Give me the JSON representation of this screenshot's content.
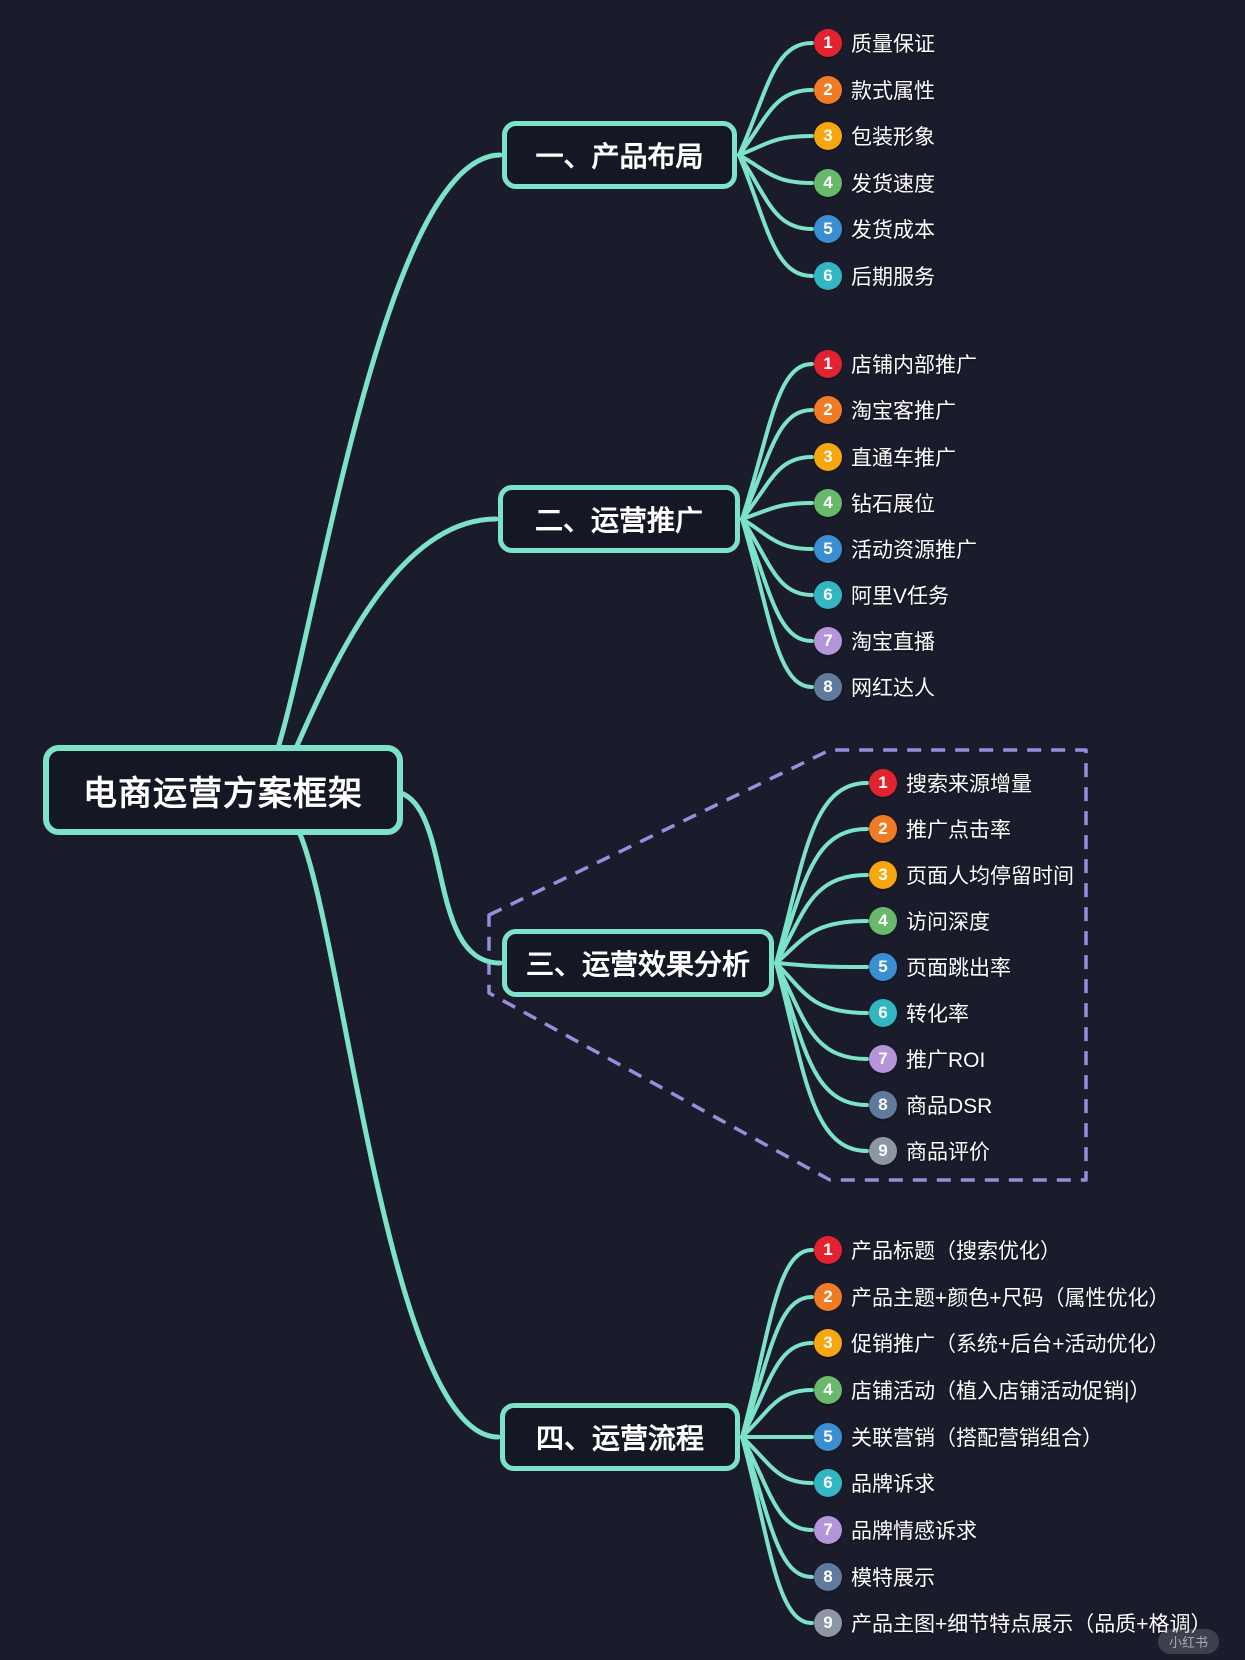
{
  "title": "电商运营方案框架",
  "watermark": "小红书",
  "colors": {
    "background": "#1a1c2b",
    "accent": "#7de3c8",
    "dashed_outline": "#958fdf",
    "text": "#ffffff",
    "badge_colors": [
      "#e2232f",
      "#ef7c25",
      "#f7a60e",
      "#68b96b",
      "#3a8ed2",
      "#31b6c2",
      "#b595d9",
      "#5f7a9d",
      "#8f96a3"
    ]
  },
  "branches": [
    {
      "label": "一、产品布局",
      "children": [
        {
          "num": "1",
          "label": "质量保证"
        },
        {
          "num": "2",
          "label": "款式属性"
        },
        {
          "num": "3",
          "label": "包装形象"
        },
        {
          "num": "4",
          "label": "发货速度"
        },
        {
          "num": "5",
          "label": "发货成本"
        },
        {
          "num": "6",
          "label": "后期服务"
        }
      ]
    },
    {
      "label": "二、运营推广",
      "children": [
        {
          "num": "1",
          "label": "店铺内部推广"
        },
        {
          "num": "2",
          "label": "淘宝客推广"
        },
        {
          "num": "3",
          "label": "直通车推广"
        },
        {
          "num": "4",
          "label": "钻石展位"
        },
        {
          "num": "5",
          "label": "活动资源推广"
        },
        {
          "num": "6",
          "label": "阿里V任务"
        },
        {
          "num": "7",
          "label": "淘宝直播"
        },
        {
          "num": "8",
          "label": "网红达人"
        }
      ]
    },
    {
      "label": "三、运营效果分析",
      "children": [
        {
          "num": "1",
          "label": "搜索来源增量"
        },
        {
          "num": "2",
          "label": "推广点击率"
        },
        {
          "num": "3",
          "label": "页面人均停留时间"
        },
        {
          "num": "4",
          "label": "访问深度"
        },
        {
          "num": "5",
          "label": "页面跳出率"
        },
        {
          "num": "6",
          "label": "转化率"
        },
        {
          "num": "7",
          "label": "推广ROI"
        },
        {
          "num": "8",
          "label": "商品DSR"
        },
        {
          "num": "9",
          "label": "商品评价"
        }
      ]
    },
    {
      "label": "四、运营流程",
      "children": [
        {
          "num": "1",
          "label": "产品标题（搜索优化）"
        },
        {
          "num": "2",
          "label": "产品主题+颜色+尺码（属性优化）"
        },
        {
          "num": "3",
          "label": "促销推广（系统+后台+活动优化）"
        },
        {
          "num": "4",
          "label": "店铺活动（植入店铺活动促销|）"
        },
        {
          "num": "5",
          "label": "关联营销（搭配营销组合）"
        },
        {
          "num": "6",
          "label": "品牌诉求"
        },
        {
          "num": "7",
          "label": "品牌情感诉求"
        },
        {
          "num": "8",
          "label": "模特展示"
        },
        {
          "num": "9",
          "label": "产品主图+细节特点展示（品质+格调）"
        }
      ]
    }
  ]
}
